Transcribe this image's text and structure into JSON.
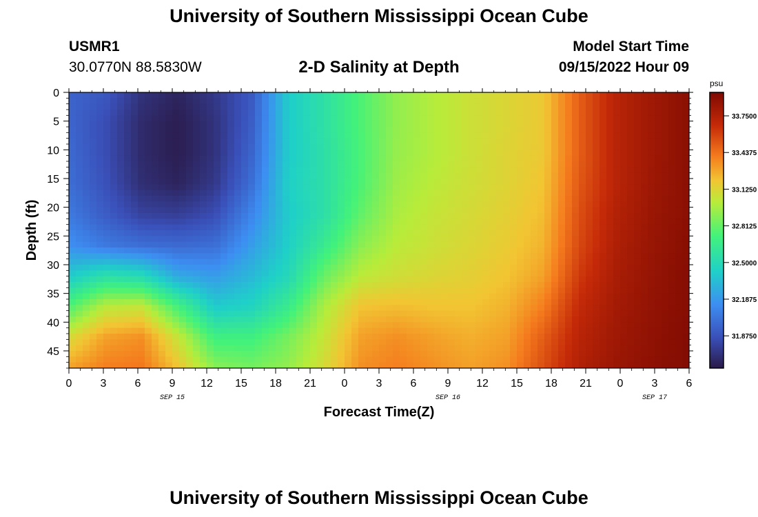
{
  "page": {
    "title": "University of Southern Mississippi Ocean Cube",
    "footer_title": "University of Southern Mississippi Ocean Cube"
  },
  "header": {
    "station": "USMR1",
    "coords": "30.0770N  88.5830W",
    "plot_title": "2-D Salinity at Depth",
    "model_label": "Model Start Time",
    "model_time": "09/15/2022 Hour 09"
  },
  "chart_data": {
    "type": "heatmap",
    "xlabel": "Forecast Time(Z)",
    "ylabel": "Depth (ft)",
    "x_ticks": [
      "0",
      "3",
      "6",
      "9",
      "12",
      "15",
      "18",
      "21",
      "0",
      "3",
      "6",
      "9",
      "12",
      "15",
      "18",
      "21",
      "0",
      "3",
      "6"
    ],
    "x_range_hours": [
      0,
      54
    ],
    "date_labels": [
      {
        "label": "SEP 15",
        "hour": 9
      },
      {
        "label": "SEP 16",
        "hour": 33
      },
      {
        "label": "SEP 17",
        "hour": 51
      }
    ],
    "y_ticks": [
      0,
      5,
      10,
      15,
      20,
      25,
      30,
      35,
      40,
      45
    ],
    "y_range": [
      0,
      48
    ],
    "colorbar": {
      "unit": "psu",
      "range": [
        31.6,
        33.95
      ],
      "tick_values": [
        31.875,
        32.1875,
        32.5,
        32.8125,
        33.125,
        33.4375,
        33.75
      ],
      "tick_labels": [
        "31.8750",
        "32.1875",
        "32.5000",
        "32.8125",
        "33.1250",
        "33.4375",
        "33.7500"
      ]
    },
    "grid": false,
    "cols": 18,
    "rows": 10,
    "values": [
      [
        31.95,
        31.9,
        31.72,
        31.65,
        31.75,
        31.9,
        32.4,
        32.56,
        32.75,
        32.92,
        33.0,
        33.07,
        33.12,
        33.18,
        33.5,
        33.72,
        33.82,
        33.9
      ],
      [
        31.96,
        31.85,
        31.68,
        31.62,
        31.72,
        31.92,
        32.4,
        32.56,
        32.75,
        32.92,
        33.0,
        33.07,
        33.12,
        33.18,
        33.5,
        33.72,
        33.82,
        33.9
      ],
      [
        31.98,
        31.85,
        31.68,
        31.62,
        31.72,
        31.95,
        32.4,
        32.55,
        32.74,
        32.93,
        33.0,
        33.07,
        33.13,
        33.18,
        33.5,
        33.72,
        33.82,
        33.9
      ],
      [
        32.0,
        31.87,
        31.7,
        31.65,
        31.75,
        32.0,
        32.42,
        32.55,
        32.75,
        32.95,
        33.02,
        33.08,
        33.13,
        33.2,
        33.52,
        33.72,
        33.83,
        33.9
      ],
      [
        32.05,
        31.92,
        31.8,
        31.78,
        31.85,
        32.1,
        32.4,
        32.55,
        32.8,
        32.98,
        33.05,
        33.1,
        33.15,
        33.22,
        33.55,
        33.74,
        33.84,
        33.9
      ],
      [
        32.15,
        32.05,
        32.0,
        31.98,
        32.0,
        32.2,
        32.42,
        32.65,
        32.9,
        33.02,
        33.07,
        33.12,
        33.17,
        33.25,
        33.57,
        33.76,
        33.85,
        33.91
      ],
      [
        32.4,
        32.55,
        32.5,
        32.25,
        32.2,
        32.32,
        32.48,
        32.82,
        33.02,
        33.08,
        33.12,
        33.15,
        33.2,
        33.3,
        33.62,
        33.78,
        33.86,
        33.92
      ],
      [
        32.75,
        33.02,
        33.05,
        32.72,
        32.4,
        32.45,
        32.65,
        32.98,
        33.2,
        33.22,
        33.2,
        33.2,
        33.25,
        33.4,
        33.68,
        33.8,
        33.87,
        33.92
      ],
      [
        33.1,
        33.3,
        33.35,
        33.05,
        32.7,
        32.7,
        32.85,
        33.05,
        33.3,
        33.35,
        33.3,
        33.26,
        33.3,
        33.5,
        33.72,
        33.82,
        33.88,
        33.93
      ],
      [
        33.3,
        33.4,
        33.42,
        33.2,
        32.9,
        32.85,
        32.92,
        33.1,
        33.35,
        33.4,
        33.35,
        33.3,
        33.35,
        33.55,
        33.75,
        33.84,
        33.89,
        33.93
      ]
    ]
  }
}
